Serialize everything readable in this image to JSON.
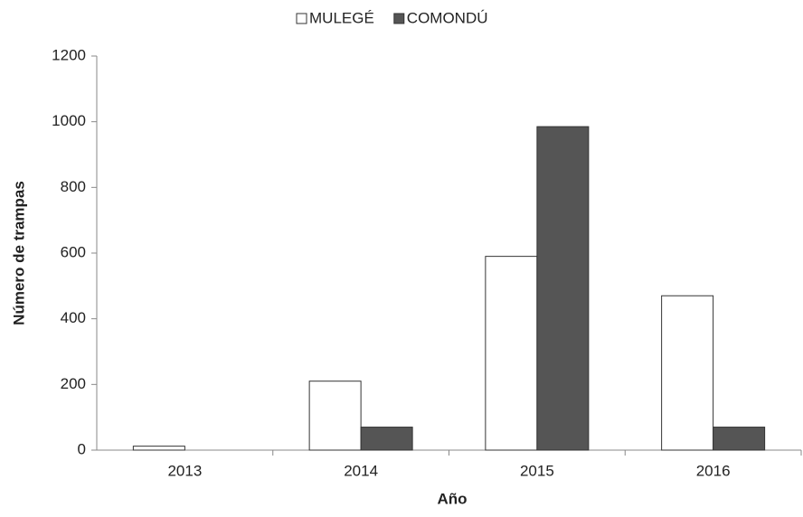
{
  "chart_data": {
    "type": "bar",
    "x_label": "Año",
    "y_label": "Número de trampas",
    "categories": [
      "2013",
      "2014",
      "2015",
      "2016"
    ],
    "series": [
      {
        "name": "MULEGÉ",
        "color": "#ffffff",
        "values": [
          12,
          210,
          590,
          470
        ]
      },
      {
        "name": "COMONDÚ",
        "color": "#555555",
        "values": [
          0,
          70,
          985,
          70
        ]
      }
    ],
    "ylim": [
      0,
      1200
    ],
    "yticks": [
      0,
      200,
      400,
      600,
      800,
      1000,
      1200
    ],
    "grid": false,
    "legend": "top"
  }
}
